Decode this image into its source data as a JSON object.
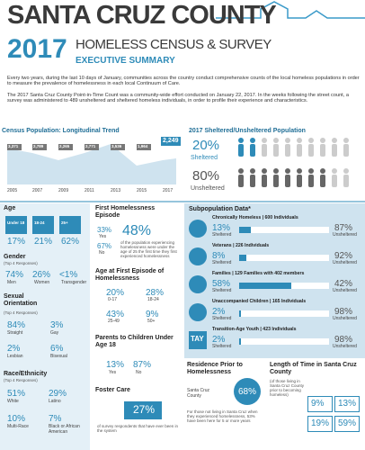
{
  "header": {
    "county": "SANTA CRUZ COUNTY",
    "year": "2017",
    "title": "HOMELESS CENSUS & SURVEY",
    "subtitle": "EXECUTIVE SUMMARY"
  },
  "intro": [
    "Every two years, during the last 10 days of January, communities across the country conduct comprehensive counts of the local homeless populations in order to measure the prevalence of homelessness in each local Continuum of Care.",
    "The 2017 Santa Cruz County Point-in-Time Count was a community-wide effort conducted on January 22, 2017. In the weeks following the street count, a survey was administered to 489 unsheltered and sheltered homeless individuals, in order to profile their experience and characteristics."
  ],
  "trend": {
    "title": "Census Population: Longitudinal Trend",
    "years": [
      "2005",
      "2007",
      "2009",
      "2011",
      "2013",
      "2015",
      "2017"
    ],
    "counts": [
      "3,371",
      "2,789",
      "2,265",
      "2,771",
      "3,536",
      "1,964",
      "2,249"
    ]
  },
  "shelter": {
    "title": "2017 Sheltered/Unsheltered Population",
    "items": [
      {
        "value": "20%",
        "label": "Sheltered"
      },
      {
        "value": "80%",
        "label": "Unsheltered"
      }
    ]
  },
  "age": {
    "title": "Age",
    "groups": [
      {
        "label": "Under 18",
        "value": "17%"
      },
      {
        "label": "18-24",
        "value": "21%"
      },
      {
        "label": "25+",
        "value": "62%"
      }
    ]
  },
  "gender": {
    "title": "Gender",
    "note": "(Top 4 Responses)",
    "items": [
      {
        "value": "74%",
        "label": "Men"
      },
      {
        "value": "26%",
        "label": "Women"
      },
      {
        "value": "<1%",
        "label": "Transgender"
      }
    ]
  },
  "orientation": {
    "title": "Sexual Orientation",
    "note": "(Top 4 Responses)",
    "items": [
      {
        "value": "84%",
        "label": "Straight"
      },
      {
        "value": "3%",
        "label": "Gay"
      },
      {
        "value": "2%",
        "label": "Lesbian"
      },
      {
        "value": "6%",
        "label": "Bisexual"
      }
    ]
  },
  "race": {
    "title": "Race/Ethnicity",
    "note": "(Top 4 Responses)",
    "items": [
      {
        "value": "51%",
        "label": "White"
      },
      {
        "value": "29%",
        "label": "Latino"
      },
      {
        "value": "10%",
        "label": "Multi-Race"
      },
      {
        "value": "7%",
        "label": "Black or African American"
      }
    ]
  },
  "first_episode": {
    "title": "First Homelessness Episode",
    "items": [
      {
        "value": "33%",
        "label": "Yes"
      },
      {
        "value": "67%",
        "label": "No"
      }
    ],
    "highlight": "48%",
    "description": "of the population experiencing homelessness were under the age of 25 the first time they first experienced homelessness"
  },
  "first_age": {
    "title": "Age at First Episode of Homelessness",
    "items": [
      {
        "value": "20%",
        "label": "0-17"
      },
      {
        "value": "28%",
        "label": "18-24"
      },
      {
        "value": "43%",
        "label": "25-49"
      },
      {
        "value": "9%",
        "label": "50+"
      }
    ]
  },
  "parents": {
    "title": "Parents to Children Under Age 18",
    "items": [
      {
        "value": "13%",
        "label": "Yes"
      },
      {
        "value": "87%",
        "label": "No"
      }
    ]
  },
  "foster": {
    "title": "Foster Care",
    "value": "27%",
    "description": "of survey respondents that have ever been in the system"
  },
  "subpopulation": {
    "title": "Subpopulation Data*",
    "rows": [
      {
        "name": "Chronically Homeless | 600 Individuals",
        "sheltered": "13%",
        "unsheltered": "87%"
      },
      {
        "name": "Veterans | 226 Individuals",
        "sheltered": "8%",
        "unsheltered": "92%"
      },
      {
        "name": "Families | 129 Families with 402 members",
        "sheltered": "58%",
        "unsheltered": "42%"
      },
      {
        "name": "Unaccompanied Children | 165 Individuals",
        "sheltered": "2%",
        "unsheltered": "98%"
      },
      {
        "name": "Transition-Age Youth | 423 Individuals",
        "sheltered": "2%",
        "unsheltered": "98%"
      }
    ],
    "sheltered_label": "Sheltered",
    "unsheltered_label": "Unsheltered",
    "tay_icon": "TAY"
  },
  "residence": {
    "title": "Residence Prior to Homelessness",
    "place": "Santa Cruz County",
    "value": "68%",
    "description": "For those not living in Santa Cruz when they experienced homelessness, 53% have been here for 5 or more years"
  },
  "length": {
    "title": "Length of Time in Santa Cruz County",
    "note": "(of those living in Santa Cruz County prior to becoming homeless)",
    "values": [
      "9%",
      "13%",
      "19%",
      "59%"
    ]
  }
}
